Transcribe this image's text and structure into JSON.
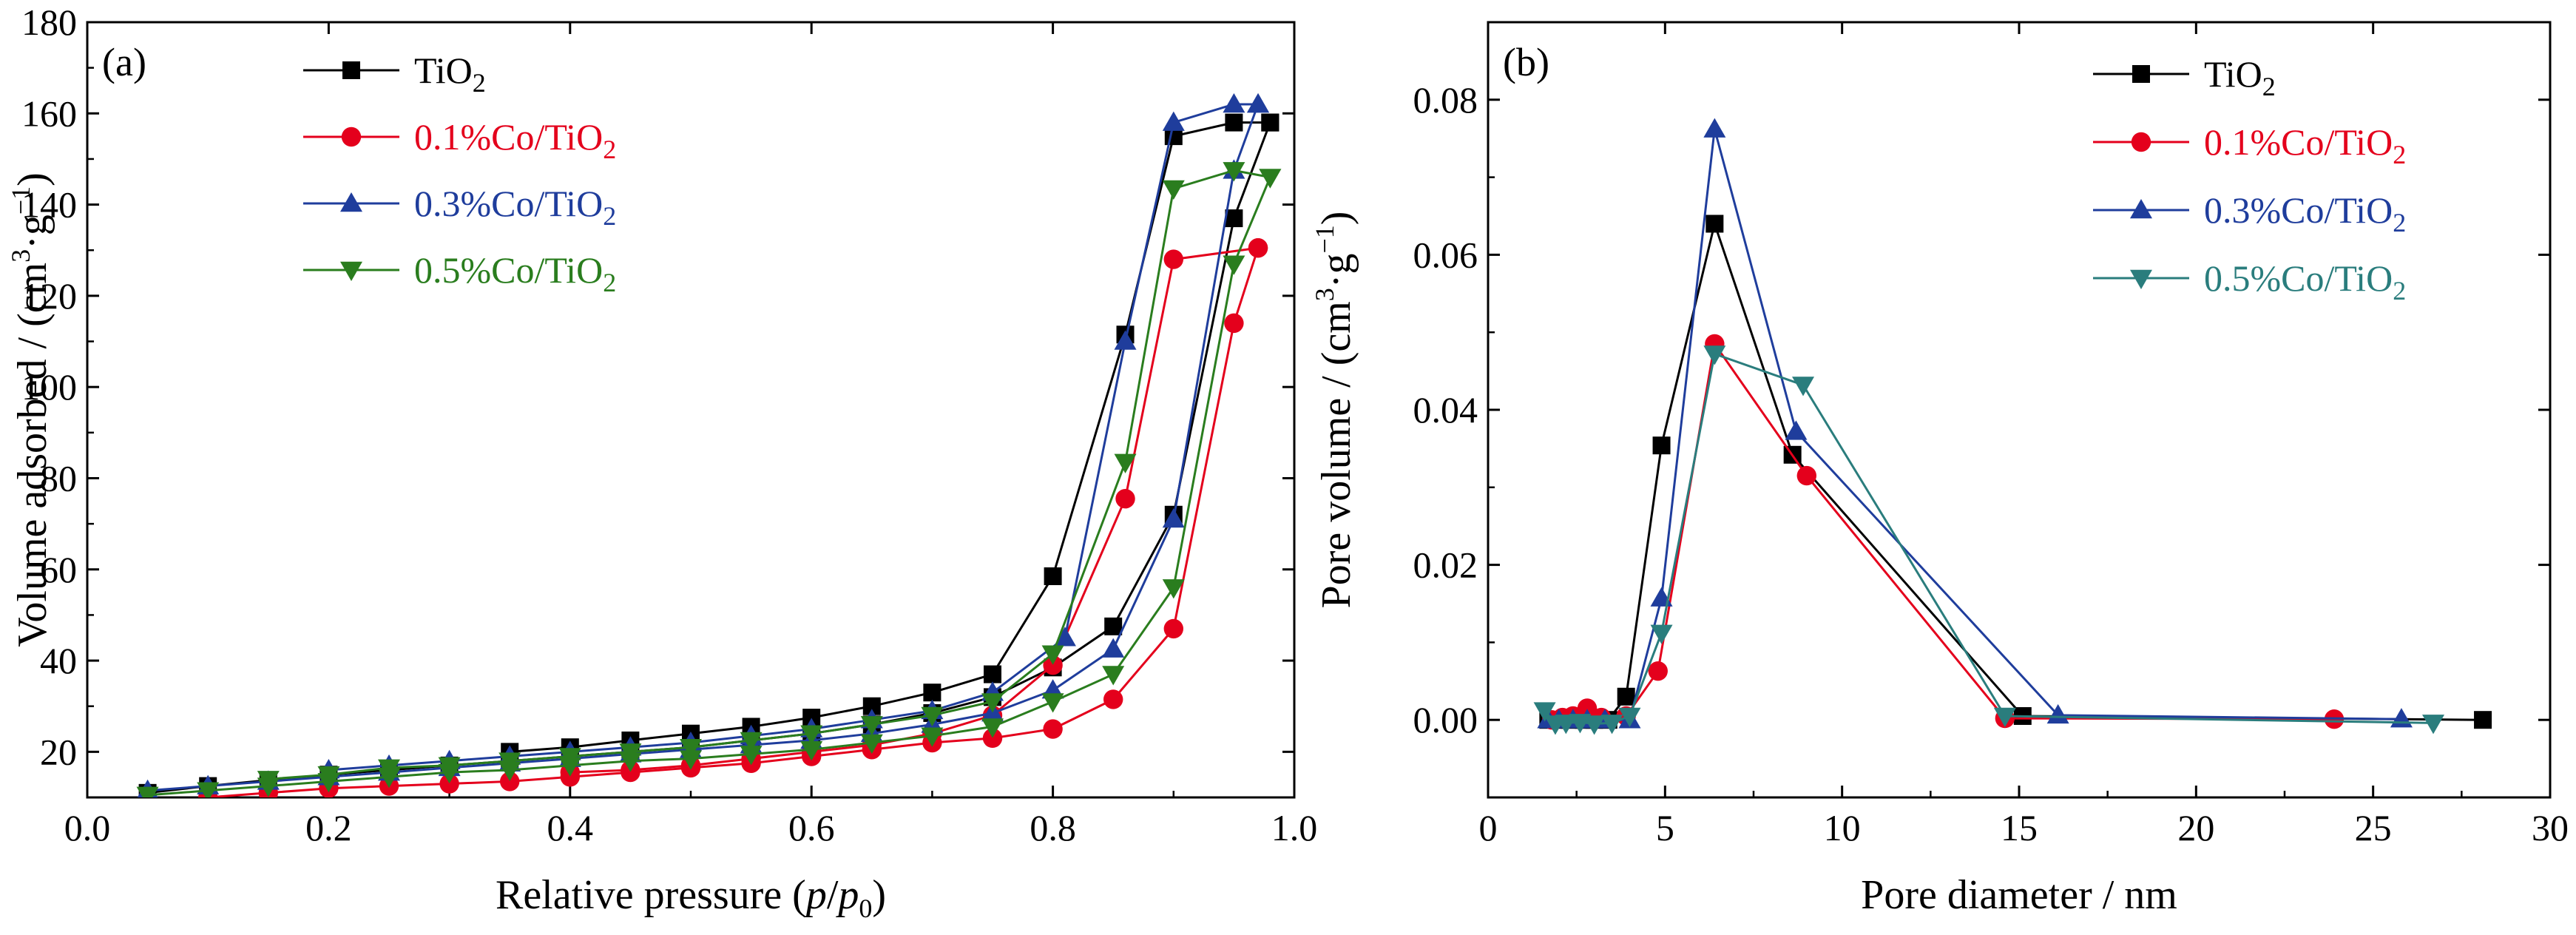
{
  "chart_data": [
    {
      "type": "line",
      "panel_label": "(a)",
      "xlabel": {
        "main": "Relative pressure (",
        "var": "p",
        "slash": "/",
        "var2": "p",
        "sub": "0",
        "close": ")"
      },
      "ylabel": {
        "main": "Volume adsorbed / (cm",
        "sup1": "3",
        "dot": "·g",
        "sup2": "−1",
        "close": ")"
      },
      "xlim": [
        0.0,
        1.0
      ],
      "ylim": [
        10,
        180
      ],
      "xticks": [
        "0.0",
        "0.2",
        "0.4",
        "0.6",
        "0.8",
        "1.0"
      ],
      "yticks": [
        "20",
        "40",
        "60",
        "80",
        "100",
        "120",
        "140",
        "160",
        "180"
      ],
      "xtick_values": [
        0.0,
        0.2,
        0.4,
        0.6,
        0.8,
        1.0
      ],
      "ytick_values": [
        20,
        40,
        60,
        80,
        100,
        120,
        140,
        160,
        180
      ],
      "legend_position": "top-left",
      "series": [
        {
          "name": "TiO",
          "name_sub": "2",
          "color": "#000000",
          "marker": "square",
          "adsorption": [
            [
              0.05,
              11
            ],
            [
              0.1,
              12.5
            ],
            [
              0.15,
              13.8
            ],
            [
              0.2,
              15
            ],
            [
              0.25,
              16
            ],
            [
              0.3,
              17
            ],
            [
              0.35,
              18
            ],
            [
              0.4,
              19
            ],
            [
              0.45,
              20
            ],
            [
              0.5,
              21
            ],
            [
              0.55,
              22.5
            ],
            [
              0.6,
              24
            ],
            [
              0.65,
              26
            ],
            [
              0.7,
              28.5
            ],
            [
              0.75,
              32
            ],
            [
              0.8,
              38.5
            ],
            [
              0.85,
              47.5
            ],
            [
              0.9,
              72
            ],
            [
              0.95,
              137
            ],
            [
              0.98,
              158
            ]
          ],
          "desorption": [
            [
              0.98,
              158
            ],
            [
              0.95,
              158
            ],
            [
              0.9,
              155
            ],
            [
              0.86,
              111.5
            ],
            [
              0.8,
              58.5
            ],
            [
              0.75,
              37
            ],
            [
              0.7,
              33
            ],
            [
              0.65,
              30
            ],
            [
              0.6,
              27.5
            ],
            [
              0.55,
              25.5
            ],
            [
              0.5,
              24
            ],
            [
              0.45,
              22.5
            ],
            [
              0.4,
              21
            ],
            [
              0.35,
              20
            ]
          ]
        },
        {
          "name": "0.1%Co/TiO",
          "name_sub": "2",
          "color": "#e4001c",
          "marker": "circle",
          "adsorption": [
            [
              0.1,
              10
            ],
            [
              0.15,
              11
            ],
            [
              0.2,
              12
            ],
            [
              0.25,
              12.5
            ],
            [
              0.3,
              13
            ],
            [
              0.35,
              13.5
            ],
            [
              0.4,
              14.5
            ],
            [
              0.45,
              15.5
            ],
            [
              0.5,
              16.5
            ],
            [
              0.55,
              17.5
            ],
            [
              0.6,
              19
            ],
            [
              0.65,
              20.5
            ],
            [
              0.7,
              22
            ],
            [
              0.75,
              23
            ],
            [
              0.8,
              25
            ],
            [
              0.85,
              31.5
            ],
            [
              0.9,
              47
            ],
            [
              0.95,
              114
            ],
            [
              0.97,
              130.5
            ]
          ],
          "desorption": [
            [
              0.97,
              130.5
            ],
            [
              0.9,
              128
            ],
            [
              0.86,
              75.5
            ],
            [
              0.8,
              39
            ],
            [
              0.75,
              28
            ],
            [
              0.7,
              24
            ],
            [
              0.65,
              21.5
            ],
            [
              0.6,
              20
            ],
            [
              0.55,
              18.5
            ],
            [
              0.5,
              17
            ],
            [
              0.45,
              16
            ],
            [
              0.4,
              15.5
            ]
          ]
        },
        {
          "name": "0.3%Co/TiO",
          "name_sub": "2",
          "color": "#1f3d9c",
          "marker": "triangle-up",
          "adsorption": [
            [
              0.05,
              11.5
            ],
            [
              0.1,
              12.5
            ],
            [
              0.15,
              13.5
            ],
            [
              0.2,
              14.5
            ],
            [
              0.25,
              15.5
            ],
            [
              0.3,
              16.5
            ],
            [
              0.35,
              17.5
            ],
            [
              0.4,
              18.5
            ],
            [
              0.45,
              19.5
            ],
            [
              0.5,
              20.5
            ],
            [
              0.55,
              21.5
            ],
            [
              0.6,
              22.5
            ],
            [
              0.65,
              24
            ],
            [
              0.7,
              26
            ],
            [
              0.75,
              28.5
            ],
            [
              0.8,
              33.5
            ],
            [
              0.85,
              42.5
            ],
            [
              0.9,
              71
            ],
            [
              0.95,
              147.5
            ],
            [
              0.97,
              162
            ]
          ],
          "desorption": [
            [
              0.97,
              162
            ],
            [
              0.95,
              162
            ],
            [
              0.9,
              158
            ],
            [
              0.86,
              110
            ],
            [
              0.81,
              45
            ],
            [
              0.75,
              33
            ],
            [
              0.7,
              29
            ],
            [
              0.65,
              27
            ],
            [
              0.6,
              25
            ],
            [
              0.55,
              23.5
            ],
            [
              0.5,
              22
            ],
            [
              0.45,
              21
            ],
            [
              0.4,
              20
            ],
            [
              0.35,
              19
            ],
            [
              0.3,
              18
            ],
            [
              0.25,
              17
            ],
            [
              0.2,
              16
            ]
          ]
        },
        {
          "name": "0.5%Co/TiO",
          "name_sub": "2",
          "color": "#2a7d1e",
          "marker": "triangle-down",
          "adsorption": [
            [
              0.05,
              10.5
            ],
            [
              0.1,
              11.5
            ],
            [
              0.15,
              12.5
            ],
            [
              0.2,
              13.5
            ],
            [
              0.25,
              14.5
            ],
            [
              0.3,
              15.5
            ],
            [
              0.35,
              16
            ],
            [
              0.4,
              17
            ],
            [
              0.45,
              18
            ],
            [
              0.5,
              18.5
            ],
            [
              0.55,
              19.5
            ],
            [
              0.6,
              20.5
            ],
            [
              0.65,
              22
            ],
            [
              0.7,
              23.5
            ],
            [
              0.75,
              25.5
            ],
            [
              0.8,
              31
            ],
            [
              0.85,
              37
            ],
            [
              0.9,
              56
            ],
            [
              0.95,
              127
            ],
            [
              0.98,
              146
            ]
          ],
          "desorption": [
            [
              0.98,
              146
            ],
            [
              0.95,
              147.5
            ],
            [
              0.9,
              143.5
            ],
            [
              0.86,
              83.5
            ],
            [
              0.8,
              41.5
            ],
            [
              0.75,
              31
            ],
            [
              0.7,
              28
            ],
            [
              0.65,
              26
            ],
            [
              0.6,
              24
            ],
            [
              0.55,
              22.5
            ],
            [
              0.5,
              21
            ],
            [
              0.45,
              20
            ],
            [
              0.4,
              19
            ],
            [
              0.35,
              18
            ],
            [
              0.3,
              17
            ],
            [
              0.25,
              16.5
            ],
            [
              0.2,
              15
            ],
            [
              0.15,
              14
            ]
          ]
        }
      ]
    },
    {
      "type": "line",
      "panel_label": "(b)",
      "xlabel": {
        "main": "Pore diameter / nm"
      },
      "ylabel": {
        "main": "Pore volume / (cm",
        "sup1": "3",
        "dot": "·g",
        "sup2": "−1",
        "close": ")"
      },
      "xlim": [
        0,
        30
      ],
      "ylim": [
        -0.01,
        0.09
      ],
      "xticks": [
        "0",
        "5",
        "10",
        "15",
        "20",
        "25",
        "30"
      ],
      "yticks": [
        "0.00",
        "0.02",
        "0.04",
        "0.06",
        "0.08"
      ],
      "xtick_values": [
        0,
        5,
        10,
        15,
        20,
        25,
        30
      ],
      "ytick_values": [
        0.0,
        0.02,
        0.04,
        0.06,
        0.08
      ],
      "legend_position": "top-right",
      "series": [
        {
          "name": "TiO",
          "name_sub": "2",
          "color": "#000000",
          "marker": "square",
          "points": [
            [
              1.7,
              0.0
            ],
            [
              2.0,
              0.0
            ],
            [
              2.3,
              0.0
            ],
            [
              2.7,
              0.0
            ],
            [
              3.0,
              0.0
            ],
            [
              3.4,
              0.0
            ],
            [
              3.9,
              0.003
            ],
            [
              4.9,
              0.0354
            ],
            [
              6.4,
              0.064
            ],
            [
              8.6,
              0.0342
            ],
            [
              15.1,
              0.0005
            ],
            [
              28.1,
              0.0
            ]
          ]
        },
        {
          "name": "0.1%Co/TiO",
          "name_sub": "2",
          "color": "#e4001c",
          "marker": "circle",
          "points": [
            [
              1.8,
              0.0
            ],
            [
              2.1,
              0.0003
            ],
            [
              2.4,
              0.0005
            ],
            [
              2.8,
              0.0015
            ],
            [
              3.2,
              0.0003
            ],
            [
              3.9,
              0.0005
            ],
            [
              4.8,
              0.0063
            ],
            [
              6.4,
              0.0485
            ],
            [
              9.0,
              0.0315
            ],
            [
              14.6,
              0.0002
            ],
            [
              23.9,
              0.0001
            ]
          ]
        },
        {
          "name": "0.3%Co/TiO",
          "name_sub": "2",
          "color": "#1f3d9c",
          "marker": "triangle-up",
          "points": [
            [
              1.7,
              0.0
            ],
            [
              2.0,
              0.0
            ],
            [
              2.4,
              0.0
            ],
            [
              2.8,
              0.0
            ],
            [
              3.3,
              0.0
            ],
            [
              4.0,
              0.0
            ],
            [
              4.9,
              0.0157
            ],
            [
              6.4,
              0.0762
            ],
            [
              8.7,
              0.0372
            ],
            [
              16.1,
              0.0006
            ],
            [
              25.8,
              0.0001
            ]
          ]
        },
        {
          "name": "0.5%Co/TiO",
          "name_sub": "2",
          "color": "#2a7d7d",
          "marker": "triangle-down",
          "points": [
            [
              1.6,
              0.0012
            ],
            [
              1.9,
              -0.0005
            ],
            [
              2.2,
              -0.0004
            ],
            [
              2.6,
              -0.0003
            ],
            [
              3.0,
              -0.0005
            ],
            [
              3.5,
              -0.0004
            ],
            [
              4.0,
              0.0005
            ],
            [
              4.9,
              0.0112
            ],
            [
              6.4,
              0.0472
            ],
            [
              8.9,
              0.0432
            ],
            [
              14.6,
              0.0005
            ],
            [
              26.7,
              -0.0004
            ]
          ]
        }
      ]
    }
  ]
}
